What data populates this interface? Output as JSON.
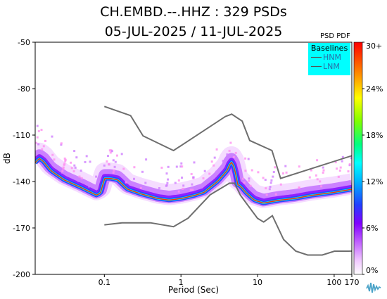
{
  "title_line1": "CH.EMBD.--.HHZ : 329 PSDs",
  "title_line2": "05-JUL-2025 / 11-JUL-2025",
  "colorbar": {
    "title": "PSD PDF",
    "tick_labels": [
      "30+",
      "24%",
      "18%",
      "12%",
      "6%",
      "0%"
    ]
  },
  "legend": {
    "title": "Baselines",
    "items": [
      {
        "label": "HNM",
        "color": "#555555"
      },
      {
        "label": "LNM",
        "color": "#555555"
      }
    ]
  },
  "chart_data": {
    "type": "heatmap",
    "xlabel": "Period (Sec)",
    "ylabel": "dB",
    "xscale": "log",
    "xlim": [
      0.0125,
      170
    ],
    "ylim": [
      -200,
      -50
    ],
    "x_tick_labels": [
      "0.1",
      "1",
      "10",
      "100",
      "170"
    ],
    "x_ticks": [
      0.1,
      1,
      10,
      100,
      170
    ],
    "y_tick_labels": [
      "-50",
      "-80",
      "-110",
      "-140",
      "-170",
      "-200"
    ],
    "y_ticks": [
      -50,
      -80,
      -110,
      -140,
      -170,
      -200
    ],
    "series": [
      {
        "name": "HNM",
        "x": [
          0.1,
          0.22,
          0.32,
          0.8,
          3.8,
          4.6,
          6.3,
          7.9,
          15.4,
          20,
          354.8
        ],
        "y": [
          -91.5,
          -97.4,
          -110.5,
          -120,
          -98,
          -96.5,
          -101,
          -113.5,
          -120,
          -138,
          -118.3
        ]
      },
      {
        "name": "LNM",
        "x": [
          0.1,
          0.17,
          0.4,
          0.8,
          1.24,
          2.4,
          4.3,
          5,
          6,
          10,
          12,
          15.6,
          21.9,
          31.6,
          45,
          70,
          101,
          154,
          328
        ],
        "y": [
          -168,
          -166.7,
          -166.7,
          -169.2,
          -163.7,
          -148.6,
          -141.1,
          -141.1,
          -149,
          -163.8,
          -166.2,
          -162.1,
          -177.5,
          -185,
          -187.5,
          -187.5,
          -185,
          -185,
          -184.4
        ]
      },
      {
        "name": "mode",
        "x": [
          0.0125,
          0.014,
          0.016,
          0.02,
          0.03,
          0.05,
          0.08,
          0.09,
          0.1,
          0.12,
          0.15,
          0.2,
          0.3,
          0.5,
          0.7,
          1,
          1.5,
          2,
          3,
          4,
          4.5,
          5,
          5.5,
          6,
          7,
          9,
          12,
          15,
          20,
          30,
          50,
          100,
          170
        ],
        "y": [
          -128,
          -125,
          -127,
          -133,
          -139,
          -144,
          -149,
          -147,
          -138,
          -138,
          -139,
          -145,
          -148,
          -151,
          -152,
          -151,
          -149,
          -147,
          -140,
          -133,
          -127,
          -131,
          -142,
          -143,
          -147,
          -152,
          -154,
          -153,
          -152,
          -151,
          -149,
          -147,
          -145
        ]
      }
    ],
    "colorscale_range": [
      0,
      30
    ]
  }
}
